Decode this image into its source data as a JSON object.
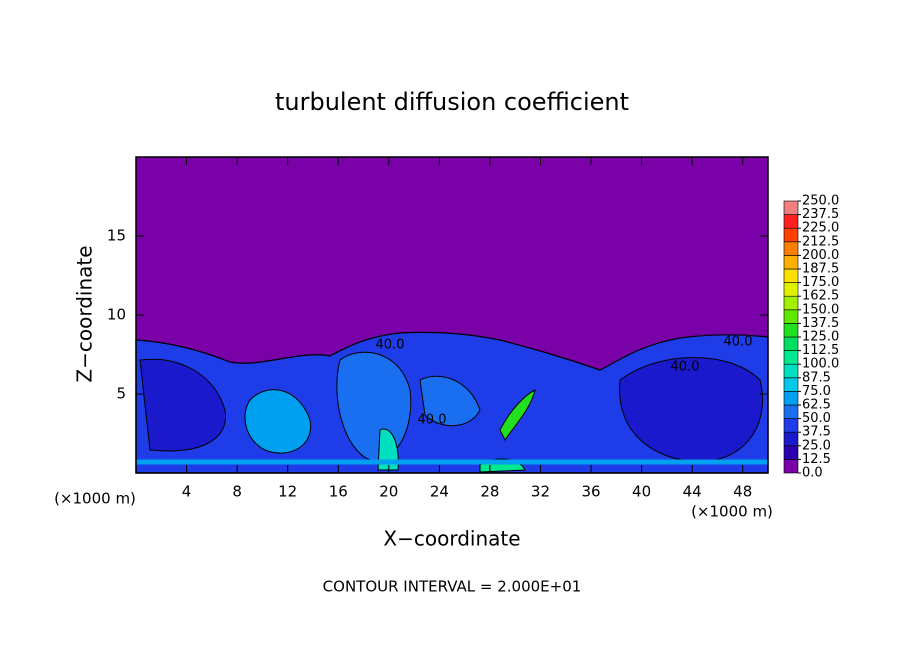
{
  "chart_data": {
    "type": "contour",
    "title": "turbulent diffusion coefficient",
    "x_label": "X−coordinate",
    "y_label": "Z−coordinate",
    "x_unit": "(×1000 m)",
    "x_unit_right": "(×1000 m)",
    "footer": "CONTOUR INTERVAL = 2.000E+01",
    "xlim": [
      0,
      50
    ],
    "ylim": [
      0,
      20
    ],
    "xticks": [
      4,
      8,
      12,
      16,
      20,
      24,
      28,
      32,
      36,
      40,
      44,
      48
    ],
    "yticks": [
      5,
      10,
      15
    ],
    "contour_labels": [
      "40.0",
      "40.0",
      "40.0",
      "40.0"
    ],
    "colorbar": {
      "levels": [
        {
          "value": 0,
          "label": "0.0"
        },
        {
          "value": 12.5,
          "label": "12.5"
        },
        {
          "value": 25,
          "label": "25.0"
        },
        {
          "value": 37.5,
          "label": "37.5"
        },
        {
          "value": 50,
          "label": "50.0"
        },
        {
          "value": 62.5,
          "label": "62.5"
        },
        {
          "value": 75,
          "label": "75.0"
        },
        {
          "value": 87.5,
          "label": "87.5"
        },
        {
          "value": 100,
          "label": "100.0"
        },
        {
          "value": 112.5,
          "label": "112.5"
        },
        {
          "value": 125,
          "label": "125.0"
        },
        {
          "value": 137.5,
          "label": "137.5"
        },
        {
          "value": 150,
          "label": "150.0"
        },
        {
          "value": 162.5,
          "label": "162.5"
        },
        {
          "value": 175,
          "label": "175.0"
        },
        {
          "value": 187.5,
          "label": "187.5"
        },
        {
          "value": 200,
          "label": "200.0"
        },
        {
          "value": 212.5,
          "label": "212.5"
        },
        {
          "value": 225,
          "label": "225.0"
        },
        {
          "value": 237.5,
          "label": "237.5"
        },
        {
          "value": 250,
          "label": "250.0"
        }
      ],
      "colors": [
        "#7a00a8",
        "#2a00b0",
        "#1a1acc",
        "#1e3ce8",
        "#1a6ef0",
        "#00a0f0",
        "#00c8e8",
        "#00e0c0",
        "#00e890",
        "#00e060",
        "#20e020",
        "#60e800",
        "#a0f000",
        "#e0f000",
        "#ffe000",
        "#ffb000",
        "#ff8000",
        "#ff4000",
        "#ff2020",
        "#f08080"
      ]
    }
  }
}
